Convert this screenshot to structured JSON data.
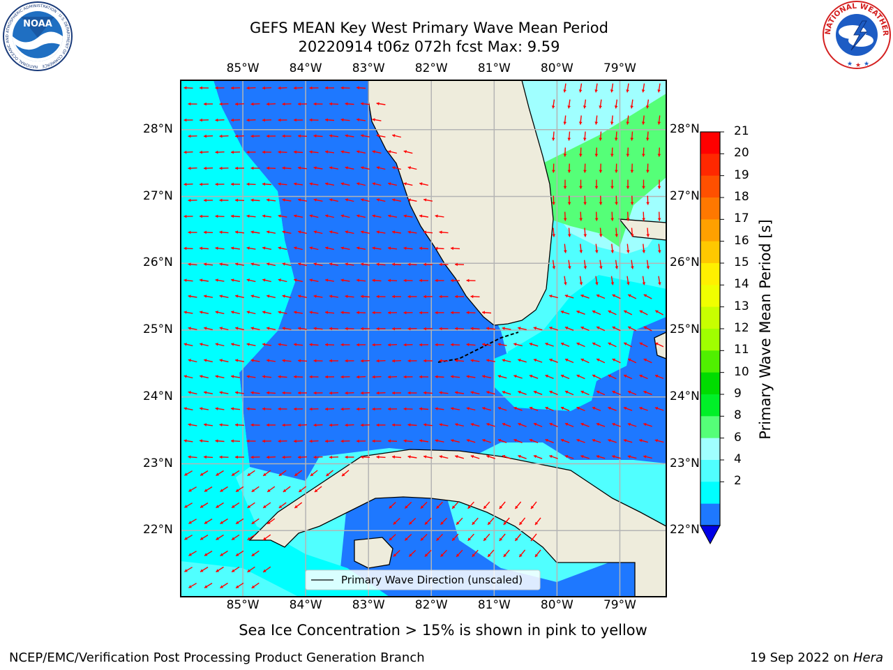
{
  "title": {
    "line1": "GEFS MEAN Key West Primary Wave Mean Period",
    "line2": "20220914 t06z 072h fcst   Max: 9.59"
  },
  "map": {
    "lon_ticks": [
      "85°W",
      "84°W",
      "83°W",
      "82°W",
      "81°W",
      "80°W",
      "79°W"
    ],
    "lat_ticks": [
      "28°N",
      "27°N",
      "26°N",
      "25°N",
      "24°N",
      "23°N",
      "22°N"
    ],
    "extent": {
      "lon_min": -86.0,
      "lon_max": -78.25,
      "lat_min": 21.0,
      "lat_max": 28.75
    },
    "legend_label": "Primary Wave Direction (unscaled)",
    "colors": {
      "land": "#eeecdc",
      "band_2_4": "#1e78ff",
      "band_4_6": "#00ffff",
      "band_6_8": "#50ffff",
      "band_8_9": "#a0ffff",
      "band_9_10": "#55ff78",
      "arrow": "#ff0000",
      "grid": "#b4b4b4"
    }
  },
  "colorbar": {
    "label": "Primary Wave Mean Period [s]",
    "ticks": [
      "21",
      "20",
      "19",
      "18",
      "17",
      "16",
      "15",
      "14",
      "13",
      "12",
      "11",
      "10",
      "9",
      "8",
      "6",
      "4",
      "2"
    ],
    "colors": [
      "#ff0000",
      "#ff2800",
      "#ff5000",
      "#ff7800",
      "#ffa000",
      "#ffc800",
      "#fff000",
      "#f0ff00",
      "#c8ff00",
      "#a0ff00",
      "#50f000",
      "#00dc00",
      "#00f028",
      "#55ff78",
      "#a0ffff",
      "#50ffff",
      "#00ffff",
      "#1e78ff"
    ],
    "extend_color": "#0000e6"
  },
  "note": "Sea Ice Concentration > 15% is shown in pink to yellow",
  "footer": {
    "left": "NCEP/EMC/Verification Post Processing Product Generation Branch",
    "right_date": "19 Sep 2022 on ",
    "right_machine": "Hera"
  },
  "logos": {
    "noaa_text": "NOAA",
    "noaa_ring": "NATIONAL OCEANIC AND ATMOSPHERIC ADMINISTRATION · U.S. DEPARTMENT OF COMMERCE",
    "nws_ring": "NATIONAL WEATHER SERVICE"
  }
}
